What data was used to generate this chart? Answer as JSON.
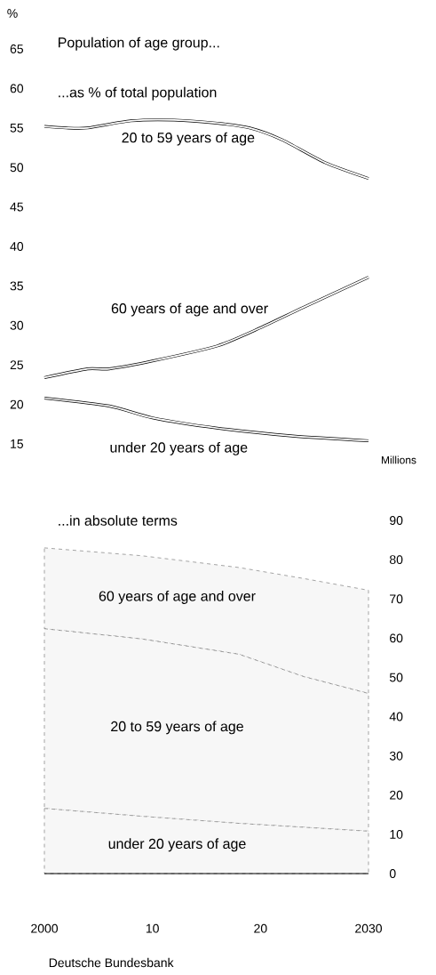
{
  "chart_data": [
    {
      "type": "line",
      "title": "Population of age group...",
      "subtitle": "...as % of total population",
      "ylabel": "%",
      "xlim": [
        2000,
        2030
      ],
      "ylim": [
        15,
        65
      ],
      "yticks": [
        15,
        20,
        25,
        30,
        35,
        40,
        45,
        50,
        55,
        60,
        65
      ],
      "tick_labels": "y",
      "series": [
        {
          "name": "20 to 59 years of age",
          "color": "#000000",
          "x": [
            2000,
            2002,
            2004,
            2008,
            2012,
            2016,
            2019,
            2022,
            2026,
            2030
          ],
          "values": [
            55.2,
            55.0,
            55.0,
            55.9,
            56.0,
            55.6,
            55.0,
            53.5,
            50.6,
            48.6
          ]
        },
        {
          "name": "60 years of age and over",
          "color": "#000000",
          "x": [
            2000,
            2004,
            2006,
            2010,
            2016,
            2020,
            2024,
            2030
          ],
          "values": [
            23.4,
            24.5,
            24.5,
            25.5,
            27.4,
            29.7,
            32.3,
            36.1
          ]
        },
        {
          "name": "under 20 years of age",
          "color": "#000000",
          "x": [
            2000,
            2006,
            2010,
            2016,
            2023,
            2030
          ],
          "values": [
            20.8,
            19.8,
            18.3,
            17.0,
            16.0,
            15.4
          ]
        }
      ]
    },
    {
      "type": "area",
      "stacked": true,
      "title": "...in absolute terms",
      "ylabel": "Millions",
      "xlim": [
        2000,
        2030
      ],
      "ylim": [
        0,
        90
      ],
      "yticks": [
        0,
        10,
        20,
        30,
        40,
        50,
        60,
        70,
        80,
        90
      ],
      "xticks": [
        {
          "value": 2000,
          "label": "2000"
        },
        {
          "value": 2010,
          "label": "10"
        },
        {
          "value": 2020,
          "label": "20"
        },
        {
          "value": 2030,
          "label": "2030"
        }
      ],
      "line_style": "dashed",
      "annotations": [
        "Deutsche Bundesbank"
      ],
      "series": [
        {
          "name": "under 20 years of age",
          "color": "#777777",
          "x": [
            2000,
            2009,
            2018,
            2024,
            2030
          ],
          "values": [
            16.6,
            14.6,
            12.8,
            11.8,
            10.8
          ]
        },
        {
          "name": "20 to 59 years of age",
          "color": "#777777",
          "x": [
            2000,
            2009,
            2018,
            2024,
            2030
          ],
          "values": [
            45.8,
            45.2,
            43.1,
            38.4,
            35.1
          ]
        },
        {
          "name": "60 years of age and over",
          "color": "#777777",
          "x": [
            2000,
            2009,
            2018,
            2024,
            2030
          ],
          "values": [
            20.6,
            21.2,
            22.1,
            25.0,
            26.3
          ]
        }
      ]
    }
  ]
}
